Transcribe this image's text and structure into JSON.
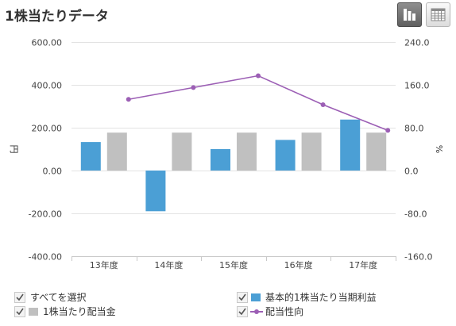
{
  "header": {
    "title": "1株当たりデータ",
    "chart_view_icon": "bar-chart-icon",
    "table_view_icon": "table-grid-icon"
  },
  "legend": {
    "select_all": "すべてを選択",
    "items": [
      {
        "label": "基本的1株当たり当期利益",
        "color": "#4b9fd5",
        "kind": "bar"
      },
      {
        "label": "1株当たり配当金",
        "color": "#c0c0c0",
        "kind": "bar"
      },
      {
        "label": "配当性向",
        "color": "#9c5fb5",
        "kind": "line"
      }
    ]
  },
  "chart_data": {
    "type": "bar",
    "categories": [
      "13年度",
      "14年度",
      "15年度",
      "16年度",
      "17年度"
    ],
    "series": [
      {
        "name": "基本的1株当たり当期利益",
        "type": "bar",
        "axis": "left",
        "color": "#4b9fd5",
        "values": [
          133,
          -190,
          100,
          143,
          238
        ]
      },
      {
        "name": "1株当たり配当金",
        "type": "bar",
        "axis": "left",
        "color": "#c0c0c0",
        "values": [
          177,
          177,
          177,
          177,
          177
        ]
      },
      {
        "name": "配当性向",
        "type": "line",
        "axis": "right",
        "color": "#9c5fb5",
        "values": [
          133,
          155,
          177,
          123,
          75
        ]
      }
    ],
    "y_left": {
      "label": "円",
      "min": -400,
      "max": 600,
      "ticks": [
        "600.00",
        "400.00",
        "200.00",
        "0.00",
        "-200.00",
        "-400.00"
      ]
    },
    "y_right": {
      "label": "%",
      "min": -160,
      "max": 240,
      "ticks": [
        "240.0",
        "160.0",
        "80.0",
        "0.0",
        "-80.0",
        "-160.0"
      ]
    },
    "grid": true
  }
}
